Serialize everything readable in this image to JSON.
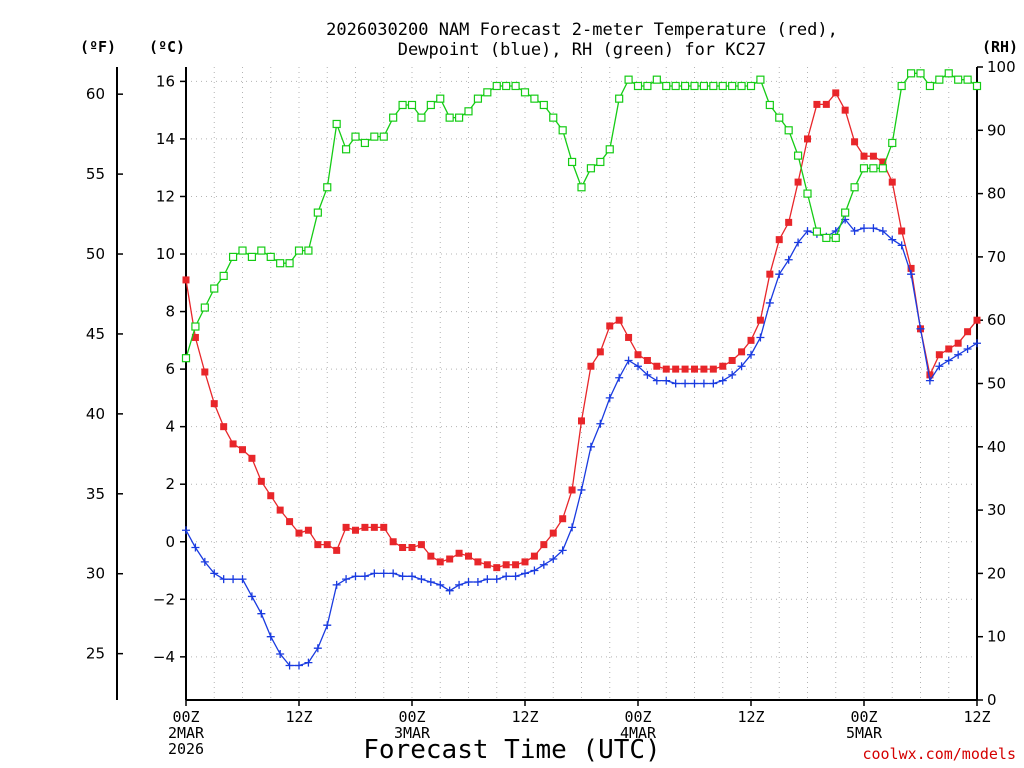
{
  "chart_data": {
    "type": "line",
    "title_line1": "2026030200 NAM Forecast 2-meter Temperature (red),",
    "title_line2": "Dewpoint (blue), RH (green) for KC27",
    "xlabel": "Forecast Time (UTC)",
    "credit": "coolwx.com/models",
    "x_start_hour": 0,
    "x_end_hour": 84,
    "x_ticks": [
      {
        "hour": 0,
        "lines": [
          "00Z",
          "2MAR",
          "2026"
        ]
      },
      {
        "hour": 12,
        "lines": [
          "12Z"
        ]
      },
      {
        "hour": 24,
        "lines": [
          "00Z",
          "3MAR"
        ]
      },
      {
        "hour": 36,
        "lines": [
          "12Z"
        ]
      },
      {
        "hour": 48,
        "lines": [
          "00Z",
          "4MAR"
        ]
      },
      {
        "hour": 60,
        "lines": [
          "12Z"
        ]
      },
      {
        "hour": 72,
        "lines": [
          "00Z",
          "5MAR"
        ]
      },
      {
        "hour": 84,
        "lines": [
          "12Z"
        ]
      }
    ],
    "axes": {
      "celsius": {
        "unit_label": "(ºC)",
        "ylim": [
          -5.5,
          16.5
        ],
        "ticks": [
          16,
          14,
          12,
          10,
          8,
          6,
          4,
          2,
          0,
          -2,
          -4
        ]
      },
      "fahrenheit": {
        "unit_label": "(ºF)",
        "ticks": [
          60,
          55,
          50,
          45,
          40,
          35,
          30,
          25
        ]
      },
      "rh": {
        "unit_label": "(RH)",
        "ylim": [
          0,
          100
        ],
        "ticks": [
          100,
          90,
          80,
          70,
          60,
          50,
          40,
          30,
          20,
          10,
          0
        ]
      }
    },
    "grid": true,
    "series": [
      {
        "name": "Temperature",
        "axis": "celsius",
        "color": "#e8262a",
        "marker": "filled-square",
        "values": [
          9.1,
          7.1,
          5.9,
          4.8,
          4.0,
          3.4,
          3.2,
          2.9,
          2.1,
          1.6,
          1.1,
          0.7,
          0.3,
          0.4,
          -0.1,
          -0.1,
          -0.3,
          0.5,
          0.4,
          0.5,
          0.5,
          0.5,
          0.0,
          -0.2,
          -0.2,
          -0.1,
          -0.5,
          -0.7,
          -0.6,
          -0.4,
          -0.5,
          -0.7,
          -0.8,
          -0.9,
          -0.8,
          -0.8,
          -0.7,
          -0.5,
          -0.1,
          0.3,
          0.8,
          1.8,
          4.2,
          6.1,
          6.6,
          7.5,
          7.7,
          7.1,
          6.5,
          6.3,
          6.1,
          6.0,
          6.0,
          6.0,
          6.0,
          6.0,
          6.0,
          6.1,
          6.3,
          6.6,
          7.0,
          7.7,
          9.3,
          10.5,
          11.1,
          12.5,
          14.0,
          15.2,
          15.2,
          15.6,
          15.0,
          13.9,
          13.4,
          13.4,
          13.2,
          12.5,
          10.8,
          9.5,
          7.4,
          5.8,
          6.5,
          6.7,
          6.9,
          7.3,
          7.7
        ]
      },
      {
        "name": "Dewpoint",
        "axis": "celsius",
        "color": "#1a3be0",
        "marker": "plus",
        "values": [
          0.4,
          -0.2,
          -0.7,
          -1.1,
          -1.3,
          -1.3,
          -1.3,
          -1.9,
          -2.5,
          -3.3,
          -3.9,
          -4.3,
          -4.3,
          -4.2,
          -3.7,
          -2.9,
          -1.5,
          -1.3,
          -1.2,
          -1.2,
          -1.1,
          -1.1,
          -1.1,
          -1.2,
          -1.2,
          -1.3,
          -1.4,
          -1.5,
          -1.7,
          -1.5,
          -1.4,
          -1.4,
          -1.3,
          -1.3,
          -1.2,
          -1.2,
          -1.1,
          -1.0,
          -0.8,
          -0.6,
          -0.3,
          0.5,
          1.8,
          3.3,
          4.1,
          5.0,
          5.7,
          6.3,
          6.1,
          5.8,
          5.6,
          5.6,
          5.5,
          5.5,
          5.5,
          5.5,
          5.5,
          5.6,
          5.8,
          6.1,
          6.5,
          7.1,
          8.3,
          9.3,
          9.8,
          10.4,
          10.8,
          10.7,
          10.6,
          10.8,
          11.2,
          10.8,
          10.9,
          10.9,
          10.8,
          10.5,
          10.3,
          9.3,
          7.4,
          5.6,
          6.1,
          6.3,
          6.5,
          6.7,
          6.9
        ]
      },
      {
        "name": "RH",
        "axis": "rh",
        "color": "#15cc15",
        "marker": "open-square",
        "values": [
          54,
          59,
          62,
          65,
          67,
          70,
          71,
          70,
          71,
          70,
          69,
          69,
          71,
          71,
          77,
          81,
          91,
          87,
          89,
          88,
          89,
          89,
          92,
          94,
          94,
          92,
          94,
          95,
          92,
          92,
          93,
          95,
          96,
          97,
          97,
          97,
          96,
          95,
          94,
          92,
          90,
          85,
          81,
          84,
          85,
          87,
          95,
          98,
          97,
          97,
          98,
          97,
          97,
          97,
          97,
          97,
          97,
          97,
          97,
          97,
          97,
          98,
          94,
          92,
          90,
          86,
          80,
          74,
          73,
          73,
          77,
          81,
          84,
          84,
          84,
          88,
          97,
          99,
          99,
          97,
          98,
          99,
          98,
          98,
          97
        ]
      }
    ]
  }
}
